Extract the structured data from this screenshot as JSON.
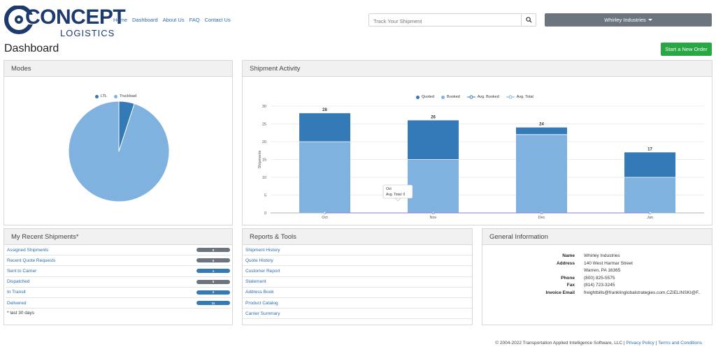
{
  "brand": {
    "name": "CONCEPT",
    "sub": "LOGISTICS",
    "logo_letter": "C"
  },
  "nav": [
    "Home",
    "Dashboard",
    "About Us",
    "FAQ",
    "Contact Us"
  ],
  "search": {
    "placeholder": "Track Your Shipment",
    "icon": "search-icon"
  },
  "user_menu": {
    "label": "Whirley Industries",
    "icon": "caret-down-icon"
  },
  "page_title": "Dashboard",
  "new_order_label": "Start a New Order",
  "colors": {
    "dark": "#337ab7",
    "light": "#7fb2de",
    "green": "#28a745",
    "grey_badge": "#6c757d",
    "blue_badge": "#337ab7"
  },
  "modes": {
    "title": "Modes",
    "legend": [
      {
        "label": "LTL",
        "color": "#337ab7"
      },
      {
        "label": "Truckload",
        "color": "#7fb2de"
      }
    ],
    "chart_data": {
      "type": "pie",
      "slices": [
        {
          "label": "LTL",
          "value": 5
        },
        {
          "label": "Truckload",
          "value": 95
        }
      ]
    }
  },
  "activity": {
    "title": "Shipment Activity",
    "legend": [
      {
        "label": "Quoted",
        "kind": "dot",
        "color": "#337ab7"
      },
      {
        "label": "Booked",
        "kind": "dot",
        "color": "#7fb2de"
      },
      {
        "label": "Avg. Booked",
        "kind": "line",
        "color": "#337ab7"
      },
      {
        "label": "Avg. Total",
        "kind": "line",
        "color": "#7fb2de"
      }
    ],
    "tooltip": {
      "title": "Oct",
      "text": "Avg. Total: 0"
    },
    "chart_data": {
      "type": "bar",
      "categories": [
        "Oct",
        "Nov",
        "Dec",
        "Jan"
      ],
      "series": [
        {
          "name": "Booked",
          "values": [
            20,
            15,
            22,
            10
          ]
        },
        {
          "name": "Quoted",
          "values": [
            8,
            11,
            2,
            7
          ]
        },
        {
          "name": "Avg. Booked",
          "values": [
            0,
            0,
            0,
            0
          ]
        },
        {
          "name": "Avg. Total",
          "values": [
            0,
            0,
            0,
            0
          ]
        }
      ],
      "totals": [
        28,
        26,
        24,
        17
      ],
      "ylabel": "Shipments",
      "yticks": [
        0,
        5,
        10,
        15,
        20,
        25,
        30
      ],
      "ylim": [
        0,
        30
      ],
      "stacked": true
    }
  },
  "recent": {
    "title": "My Recent Shipments*",
    "items": [
      {
        "label": "Assigned Shipments",
        "count": "0",
        "tone": "grey"
      },
      {
        "label": "Recent Quote Requests",
        "count": "0",
        "tone": "grey"
      },
      {
        "label": "Sent to Carrier",
        "count": "1",
        "tone": "blue"
      },
      {
        "label": "Dispatched",
        "count": "0",
        "tone": "grey"
      },
      {
        "label": "In Transit",
        "count": "2",
        "tone": "blue"
      },
      {
        "label": "Delivered",
        "count": "11",
        "tone": "blue"
      }
    ],
    "note": "* last 30 days"
  },
  "reports": {
    "title": "Reports & Tools",
    "items": [
      "Shipment History",
      "Quote History",
      "Customer Report",
      "Statement",
      "Address Book",
      "Product Catalog",
      "Carrier Summary"
    ]
  },
  "general": {
    "title": "General Information",
    "rows": [
      {
        "k": "Name",
        "v": "Whirley Industries"
      },
      {
        "k": "Address",
        "v": "140 West Harmar Street"
      },
      {
        "k": "",
        "v": "Warren, PA 16365"
      },
      {
        "k": "Phone",
        "v": "(800) 825-5575"
      },
      {
        "k": "Fax",
        "v": "(814) 723-3245"
      },
      {
        "k": "Invoice Email",
        "v": "freightbills@franklinglobalstrategies.com,CZIELINSKI@F..."
      }
    ]
  },
  "footer": {
    "copyright": "© 2004-2022 Transportation Applied Intelligence Software, LLC |",
    "privacy": "Privacy Policy",
    "sep": "|",
    "terms": "Terms and Conditions"
  }
}
